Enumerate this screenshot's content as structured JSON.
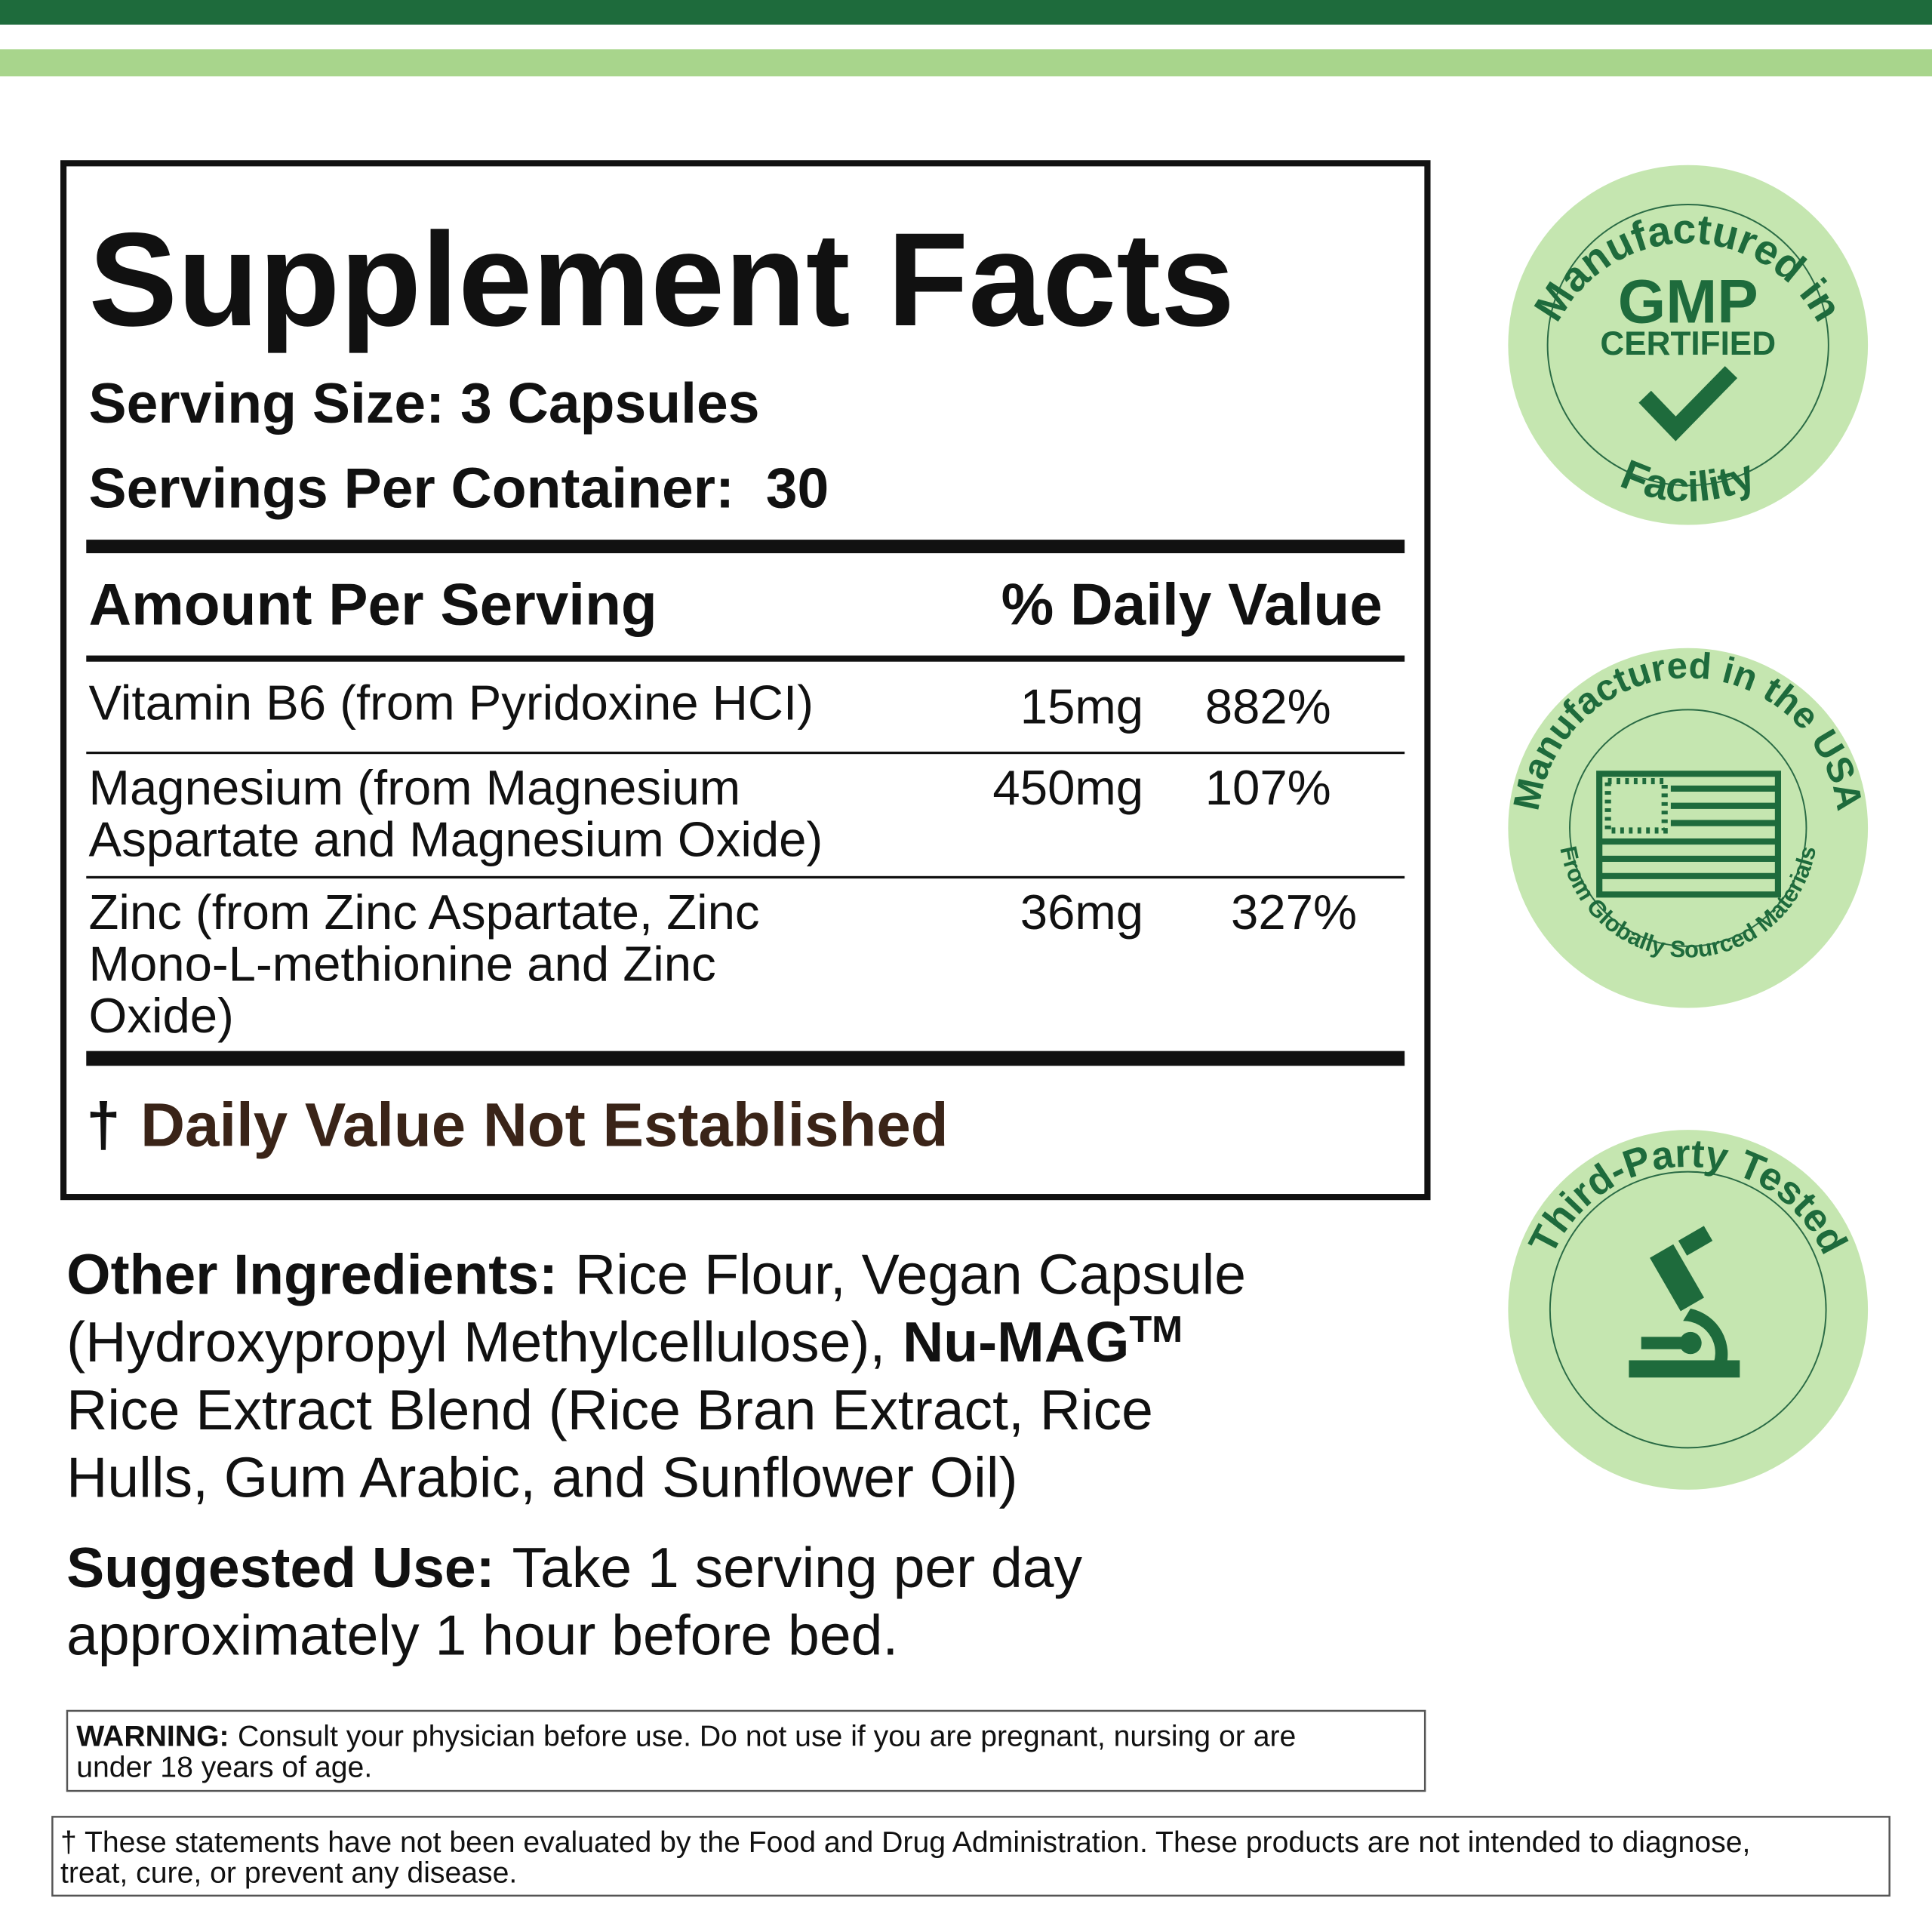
{
  "label": {
    "title": "Supplement Facts",
    "serving_size": "Serving Size: 3 Capsules",
    "servings_per_container": "Servings Per Container:  30",
    "amount_header": "Amount Per Serving",
    "dv_header": "% Daily Value",
    "rows": [
      {
        "name_lines": [
          "Vitamin B6 (from Pyridoxine HCI)"
        ],
        "amount": "15mg",
        "dv": "882%"
      },
      {
        "name_lines": [
          "Magnesium (from Magnesium",
          "Aspartate and Magnesium Oxide)"
        ],
        "amount": "450mg",
        "dv": "107%"
      },
      {
        "name_lines": [
          "Zinc (from Zinc Aspartate, Zinc",
          "Mono-L-methionine and Zinc",
          "Oxide)"
        ],
        "amount": "36mg",
        "dv": "327%"
      }
    ],
    "dagger": "†",
    "footnote": "Daily Value Not Established"
  },
  "other_ingredients": {
    "heading": "Other Ingredients:",
    "line1": "Rice Flour, Vegan Capsule",
    "line2": "(Hydroxypropyl Methylcellulose),",
    "brand": "Nu-MAG",
    "trademark": "TM",
    "line3": "Rice Extract Blend (Rice Bran Extract, Rice",
    "line4": "Hulls, Gum Arabic, and Sunflower Oil)"
  },
  "suggested_use": {
    "heading": "Suggested Use:",
    "line1": "Take 1 serving per day",
    "line2": "approximately 1 hour before bed."
  },
  "warning": {
    "heading": "WARNING:",
    "line1": "Consult your physician before use. Do not use if you are pregnant, nursing or are",
    "line2": "under 18 years of age."
  },
  "disclaimer": {
    "line1": "† These statements have not been evaluated by the Food and Drug Administration. These products are not intended to diagnose,",
    "line2": "treat, cure, or prevent any disease."
  },
  "badges": [
    {
      "top": "Manufactured in",
      "main": "GMP",
      "sub": "CERTIFIED",
      "bottom": "Facility"
    },
    {
      "top": "Manufactured in the USA",
      "bottom": "From Globally Sourced Materials"
    },
    {
      "top": "Third-Party Tested"
    }
  ]
}
